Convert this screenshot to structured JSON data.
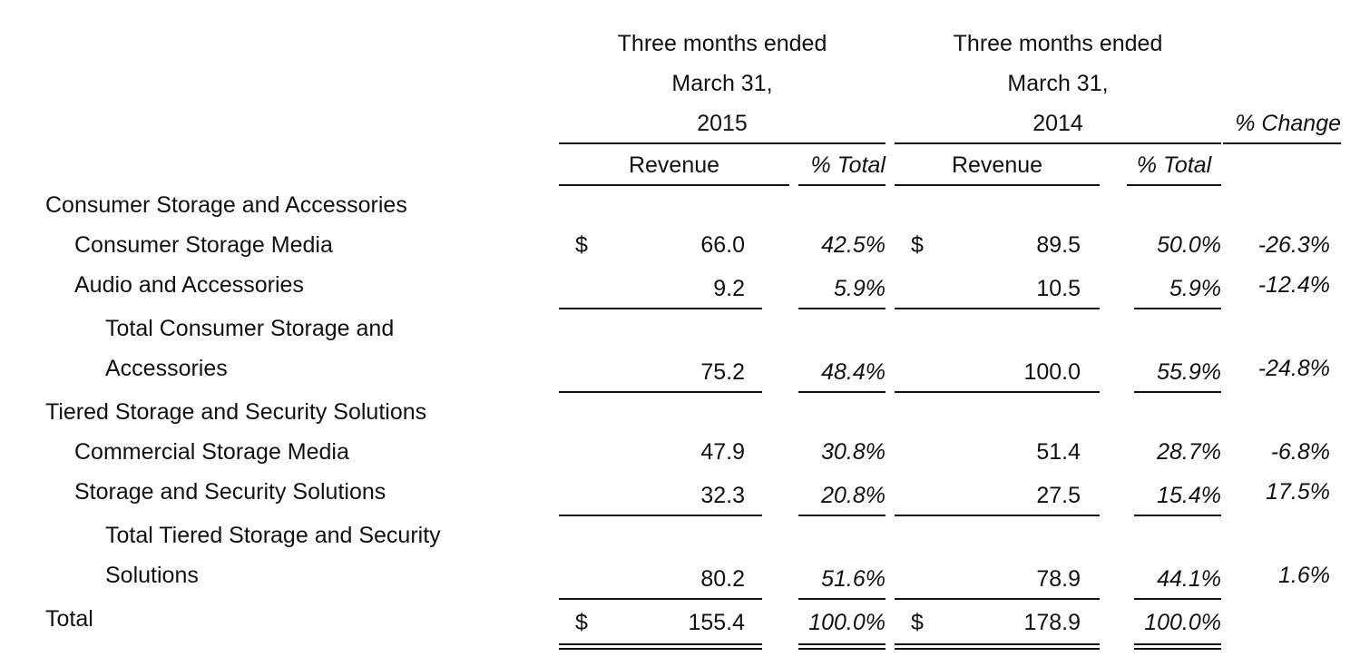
{
  "header": {
    "col_2015": [
      "Three months ended",
      "March 31,",
      "2015"
    ],
    "col_2014": [
      "Three months ended",
      "March 31,",
      "2014"
    ],
    "pct_change": "% Change",
    "revenue_label": "Revenue",
    "pct_total_label": "% Total"
  },
  "currency_symbol": "$",
  "rows": {
    "csa_heading": "Consumer Storage and Accessories",
    "csm": {
      "label": "Consumer Storage Media",
      "rev2015": "66.0",
      "pct2015": "42.5%",
      "rev2014": "89.5",
      "pct2014": "50.0%",
      "change": "-26.3%"
    },
    "aa": {
      "label": "Audio and Accessories",
      "rev2015": "9.2",
      "pct2015": "5.9%",
      "rev2014": "10.5",
      "pct2014": "5.9%",
      "change": "-12.4%"
    },
    "total_csa": {
      "label_line1": "Total Consumer Storage and",
      "label_line2": "Accessories",
      "rev2015": "75.2",
      "pct2015": "48.4%",
      "rev2014": "100.0",
      "pct2014": "55.9%",
      "change": "-24.8%"
    },
    "tsss_heading": "Tiered Storage and Security Solutions",
    "commercial": {
      "label": "Commercial Storage Media",
      "rev2015": "47.9",
      "pct2015": "30.8%",
      "rev2014": "51.4",
      "pct2014": "28.7%",
      "change": "-6.8%"
    },
    "sss": {
      "label": "Storage and Security Solutions",
      "rev2015": "32.3",
      "pct2015": "20.8%",
      "rev2014": "27.5",
      "pct2014": "15.4%",
      "change": "17.5%"
    },
    "total_tsss": {
      "label_line1": "Total Tiered Storage and Security",
      "label_line2": "Solutions",
      "rev2015": "80.2",
      "pct2015": "51.6%",
      "rev2014": "78.9",
      "pct2014": "44.1%",
      "change": "1.6%"
    },
    "total": {
      "label": "Total",
      "rev2015": "155.4",
      "pct2015": "100.0%",
      "rev2014": "178.9",
      "pct2014": "100.0%"
    }
  }
}
